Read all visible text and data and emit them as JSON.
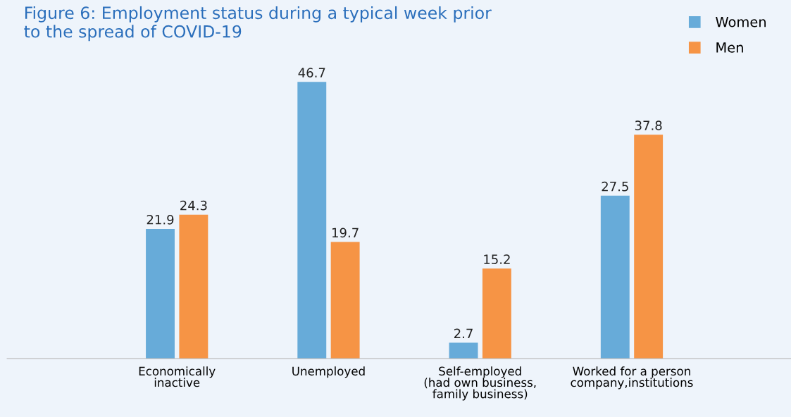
{
  "chart_data": {
    "type": "bar",
    "title": "Figure 6: Employment status during a typical week prior\nto the spread of COVID-19",
    "categories": [
      "Economically\ninactive",
      "Unemployed",
      "Self-employed\n(had own business,\nfamily business)",
      "Worked for a person\ncompany,institutions"
    ],
    "series": [
      {
        "name": "Women",
        "color": "#67abd9",
        "values": [
          21.9,
          46.7,
          2.7,
          27.5
        ]
      },
      {
        "name": "Men",
        "color": "#f69445",
        "values": [
          24.3,
          19.7,
          15.2,
          37.8
        ]
      }
    ],
    "data_labels": true,
    "legend": "top right",
    "grid": false
  }
}
